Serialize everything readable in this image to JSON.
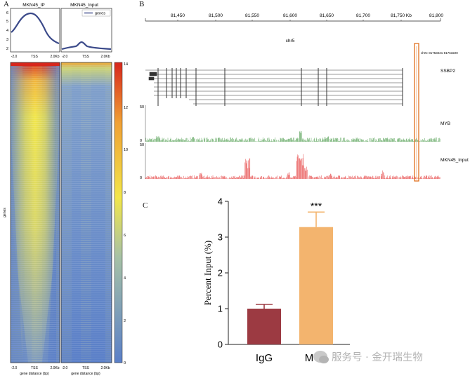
{
  "panels": {
    "a": "A",
    "b": "B",
    "c": "C"
  },
  "panel_a": {
    "profiles": [
      {
        "title": "MKN45_IP"
      },
      {
        "title": "MKN45_Input",
        "legend": "genes"
      }
    ],
    "profile_yticks": [
      "2",
      "3",
      "4",
      "5",
      "6"
    ],
    "profile_xticks": [
      "-2.0",
      "TSS",
      "2.0Kb"
    ],
    "heatmap_ylabel": "genes",
    "heatmap_xticks": [
      "-2.0",
      "TSS",
      "2.0Kb"
    ],
    "heatmap_xlabel": "gene distance (bp)",
    "colorbar_ticks": [
      "14",
      "12",
      "10",
      "8",
      "6",
      "4",
      "2",
      "0"
    ],
    "colors": {
      "low": "#5a7fc8",
      "mid": "#f2e64a",
      "high": "#d7261c",
      "line": "#3b4a8a"
    }
  },
  "panel_b": {
    "axis_ticks": [
      "81,450",
      "81,500",
      "81,550",
      "81,600",
      "81,650",
      "81,700",
      "81,750 Kb",
      "81,800"
    ],
    "chrom": "chr5",
    "region_label": "chr5: 81753221-81763220",
    "gene": "SSBP2",
    "tracks": [
      {
        "name": "MYB",
        "scale_top": "50",
        "scale_bottom": "0",
        "color": "#2e8b2e"
      },
      {
        "name": "MKN45_Input",
        "scale_top": "50",
        "scale_bottom": "0",
        "color": "#e01b1b"
      }
    ],
    "highlight_color": "#e0701e"
  },
  "chart_data": {
    "type": "bar",
    "categories": [
      "IgG",
      "MYB"
    ],
    "values": [
      1.0,
      3.28
    ],
    "errors": [
      0.12,
      0.42
    ],
    "ylabel": "Percent Input (%)",
    "ylim": [
      0,
      4
    ],
    "yticks": [
      "0",
      "1",
      "2",
      "3",
      "4"
    ],
    "significance": "***",
    "colors": [
      "#9c3a42",
      "#f3b46e"
    ]
  },
  "watermark": "服务号 · 金开瑞生物"
}
